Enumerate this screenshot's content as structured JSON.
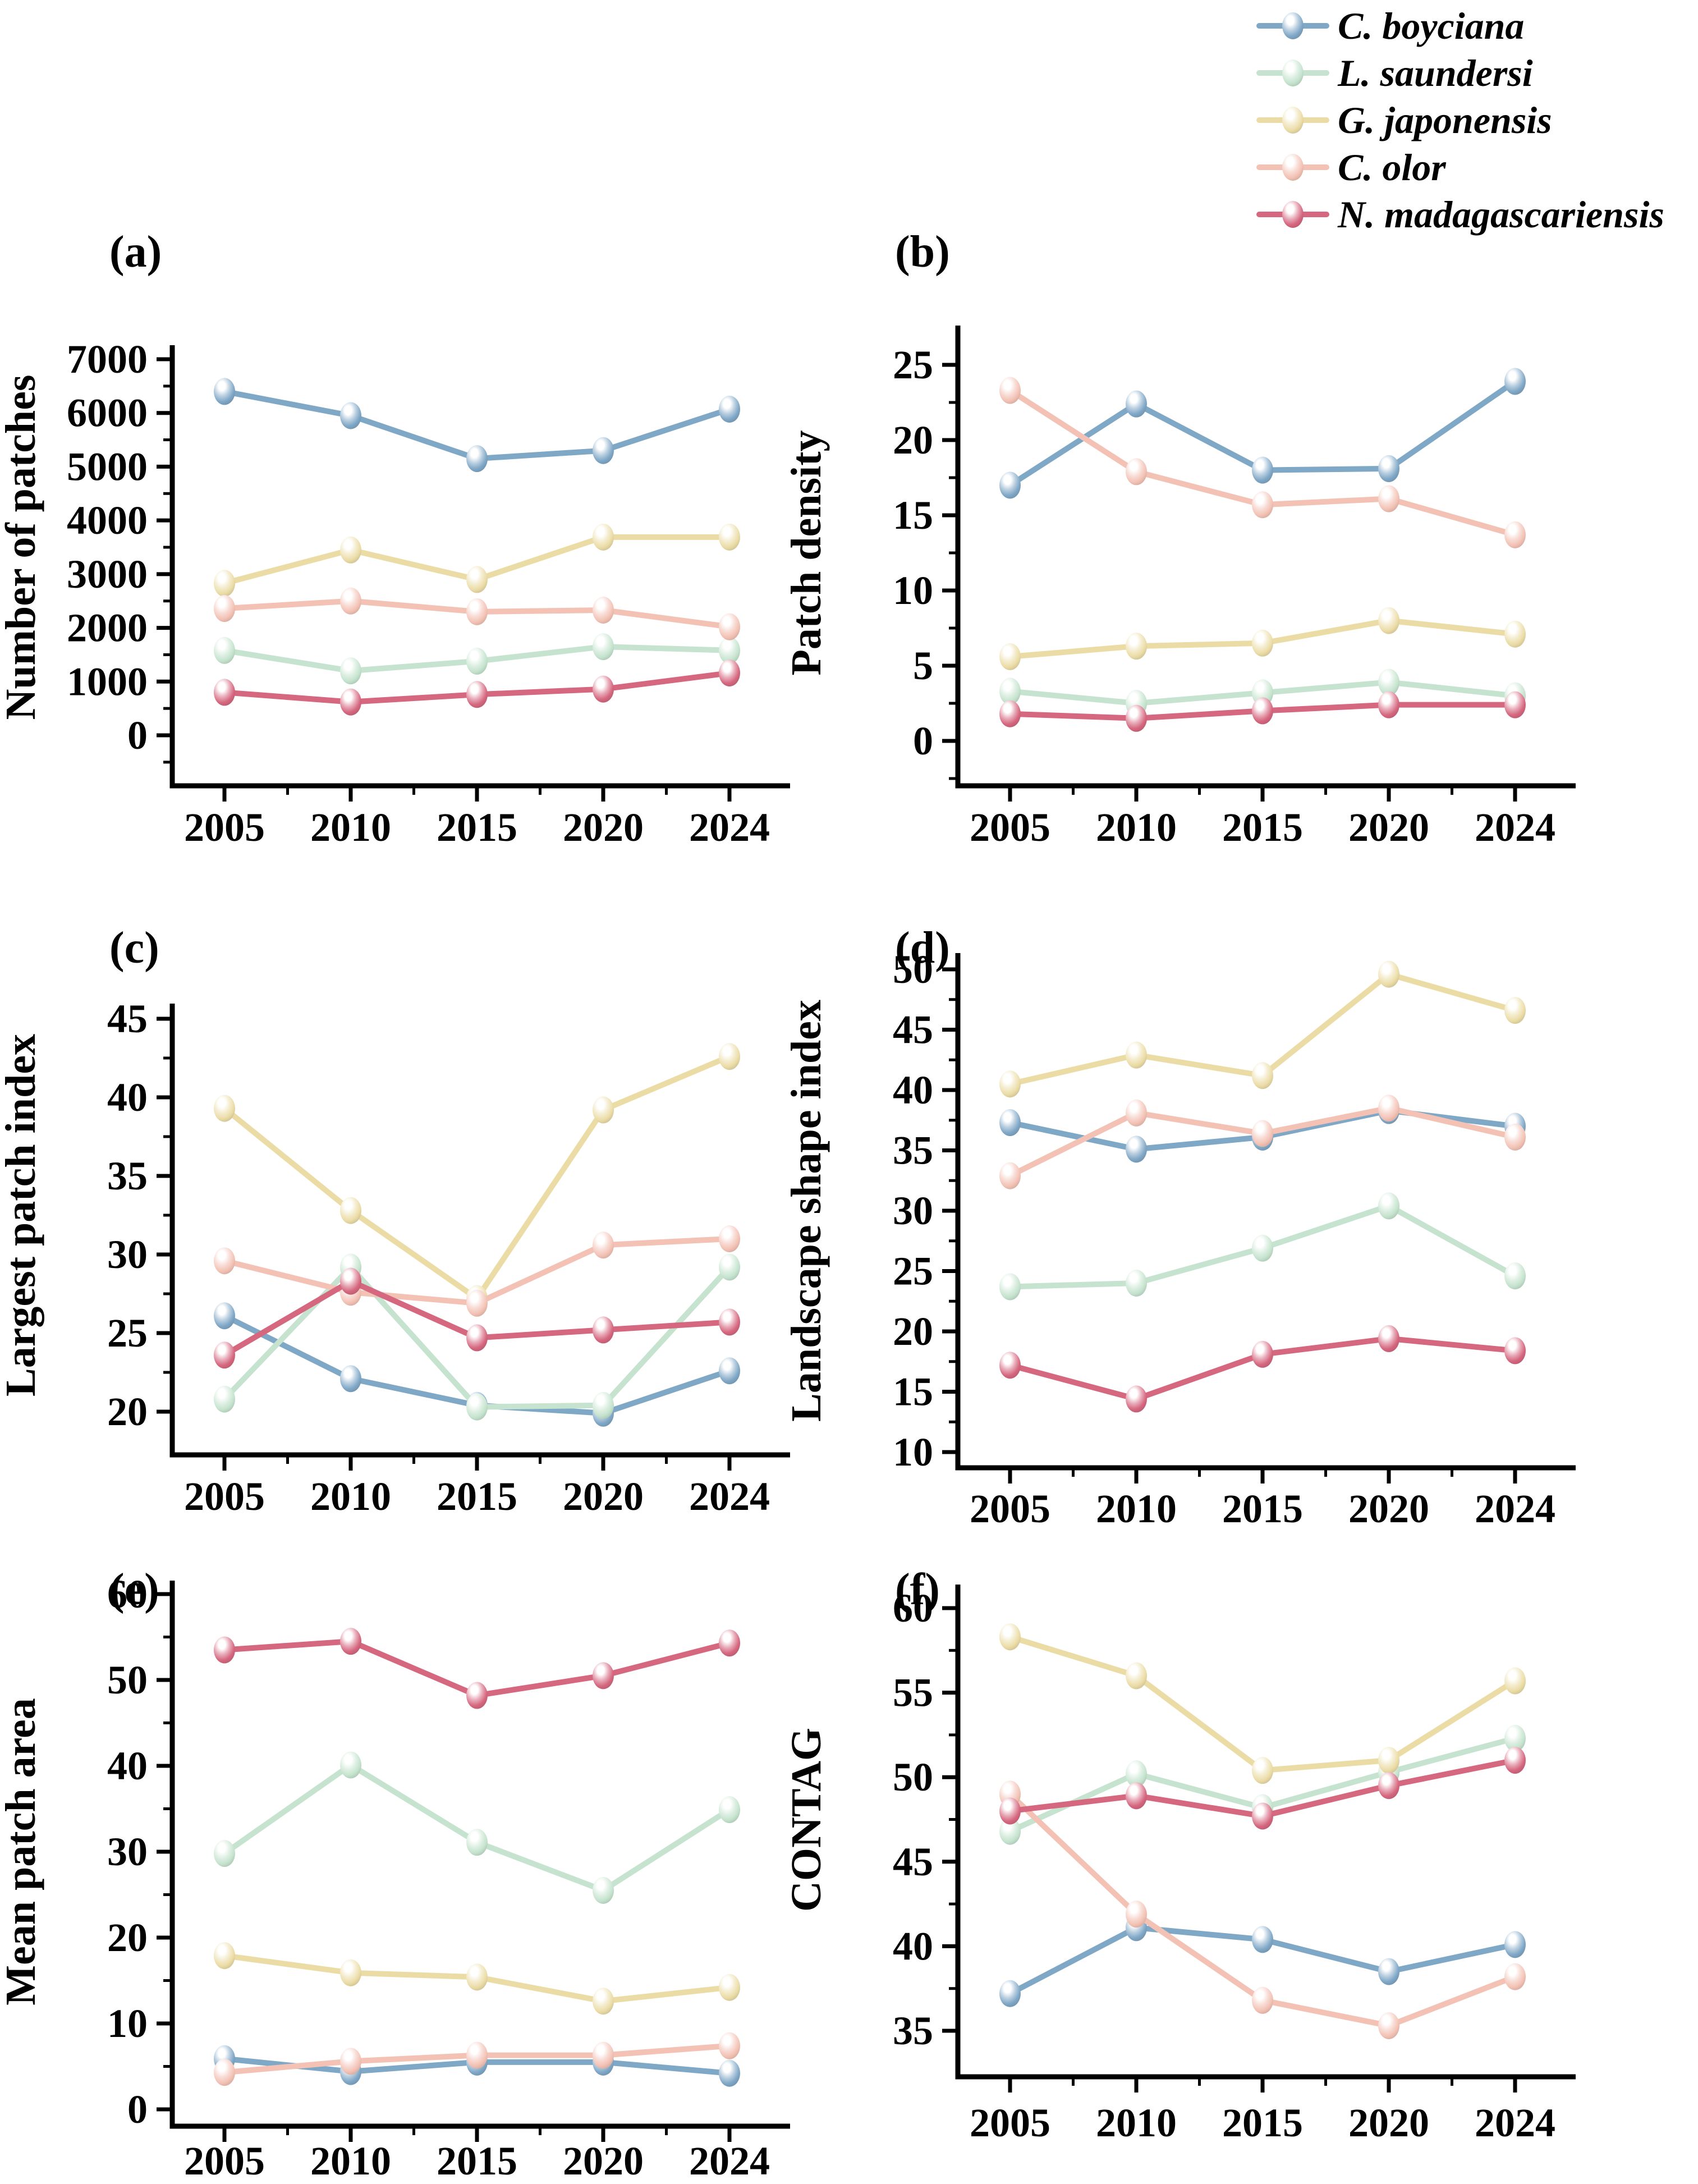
{
  "figure": {
    "background": "#ffffff"
  },
  "colors": {
    "axis": "#000000",
    "series": {
      "C. boyciana": "#7FA7C6",
      "L. saundersi": "#C5E3CE",
      "G. japonensis": "#EBDCA6",
      "C. olor": "#F3C2B5",
      "N. madagascariensis": "#D5677F"
    }
  },
  "legend": {
    "items": [
      {
        "label": "C. boyciana",
        "color": "#7FA7C6"
      },
      {
        "label": "L. saundersi",
        "color": "#C5E3CE"
      },
      {
        "label": "G. japonensis",
        "color": "#EBDCA6"
      },
      {
        "label": "C. olor",
        "color": "#F3C2B5"
      },
      {
        "label": "N. madagascariensis",
        "color": "#D5677F"
      }
    ]
  },
  "chart_data": [
    {
      "panel": "(a)",
      "type": "line",
      "ylabel": "Number of patches",
      "categories": [
        "2005",
        "2010",
        "2015",
        "2020",
        "2024"
      ],
      "yticks": [
        0,
        1000,
        2000,
        3000,
        4000,
        5000,
        6000,
        7000
      ],
      "ylim": [
        -650,
        7000
      ],
      "grid": false,
      "legend_position": "figure-top-right",
      "series": [
        {
          "name": "C. boyciana",
          "values": [
            6400,
            5950,
            5150,
            5300,
            6070
          ]
        },
        {
          "name": "L. saundersi",
          "values": [
            1580,
            1200,
            1380,
            1650,
            1580
          ]
        },
        {
          "name": "G. japonensis",
          "values": [
            2830,
            3450,
            2900,
            3690,
            3690
          ]
        },
        {
          "name": "C. olor",
          "values": [
            2360,
            2500,
            2300,
            2330,
            2020
          ]
        },
        {
          "name": "N. madagascariensis",
          "values": [
            800,
            620,
            760,
            860,
            1160
          ]
        }
      ]
    },
    {
      "panel": "(b)",
      "type": "line",
      "ylabel": "Patch density",
      "categories": [
        "2005",
        "2010",
        "2015",
        "2020",
        "2024"
      ],
      "yticks": [
        0,
        5,
        10,
        15,
        20,
        25
      ],
      "ylim": [
        -3,
        27.5
      ],
      "grid": false,
      "series": [
        {
          "name": "C. boyciana",
          "values": [
            17.0,
            22.4,
            18.0,
            18.1,
            23.9
          ]
        },
        {
          "name": "L. saundersi",
          "values": [
            3.3,
            2.5,
            3.2,
            3.9,
            3.0
          ]
        },
        {
          "name": "G. japonensis",
          "values": [
            5.6,
            6.3,
            6.5,
            8.0,
            7.1
          ]
        },
        {
          "name": "C. olor",
          "values": [
            23.3,
            17.9,
            15.7,
            16.1,
            13.7
          ]
        },
        {
          "name": "N. madagascariensis",
          "values": [
            1.8,
            1.5,
            2.0,
            2.4,
            2.4
          ]
        }
      ]
    },
    {
      "panel": "(c)",
      "type": "line",
      "ylabel": "Largest patch index",
      "categories": [
        "2005",
        "2010",
        "2015",
        "2020",
        "2024"
      ],
      "yticks": [
        20,
        25,
        30,
        35,
        40,
        45
      ],
      "ylim": [
        17.25,
        45.95
      ],
      "grid": false,
      "series": [
        {
          "name": "C. boyciana",
          "values": [
            26.1,
            22.1,
            20.4,
            19.9,
            22.6
          ]
        },
        {
          "name": "L. saundersi",
          "values": [
            20.8,
            29.2,
            20.3,
            20.4,
            29.2
          ]
        },
        {
          "name": "G. japonensis",
          "values": [
            39.3,
            32.8,
            27.2,
            39.2,
            42.6
          ]
        },
        {
          "name": "C. olor",
          "values": [
            29.6,
            27.6,
            26.9,
            30.6,
            31.0
          ]
        },
        {
          "name": "N. madagascariensis",
          "values": [
            23.6,
            28.3,
            24.7,
            25.2,
            25.7
          ]
        }
      ]
    },
    {
      "panel": "(d)",
      "type": "line",
      "ylabel": "Landscape shape index",
      "categories": [
        "2005",
        "2010",
        "2015",
        "2020",
        "2024"
      ],
      "yticks": [
        10,
        15,
        20,
        25,
        30,
        35,
        40,
        45,
        50
      ],
      "ylim": [
        8.7,
        51.35
      ],
      "grid": false,
      "series": [
        {
          "name": "C. boyciana",
          "values": [
            37.3,
            35.1,
            36.1,
            38.3,
            37.0
          ]
        },
        {
          "name": "L. saundersi",
          "values": [
            23.7,
            24.0,
            26.9,
            30.4,
            24.6
          ]
        },
        {
          "name": "G. japonensis",
          "values": [
            40.5,
            42.9,
            41.2,
            49.6,
            46.6
          ]
        },
        {
          "name": "C. olor",
          "values": [
            32.9,
            38.1,
            36.4,
            38.5,
            36.1
          ]
        },
        {
          "name": "N. madagascariensis",
          "values": [
            17.2,
            14.4,
            18.1,
            19.4,
            18.4
          ]
        }
      ]
    },
    {
      "panel": "(e)",
      "type": "line",
      "ylabel": "Mean patch area",
      "categories": [
        "2005",
        "2010",
        "2015",
        "2020",
        "2024"
      ],
      "yticks": [
        0,
        10,
        20,
        30,
        40,
        50,
        60
      ],
      "ylim": [
        -2,
        61.6
      ],
      "grid": false,
      "series": [
        {
          "name": "C. boyciana",
          "values": [
            5.9,
            4.4,
            5.5,
            5.5,
            4.2
          ]
        },
        {
          "name": "L. saundersi",
          "values": [
            29.8,
            40.1,
            31.1,
            25.5,
            34.9
          ]
        },
        {
          "name": "G. japonensis",
          "values": [
            17.9,
            15.9,
            15.4,
            12.6,
            14.2
          ]
        },
        {
          "name": "C. olor",
          "values": [
            4.3,
            5.6,
            6.3,
            6.3,
            7.4
          ]
        },
        {
          "name": "N. madagascariensis",
          "values": [
            53.5,
            54.5,
            48.2,
            50.5,
            54.3
          ]
        }
      ]
    },
    {
      "panel": "(f)",
      "type": "line",
      "ylabel": "CONTAG",
      "categories": [
        "2005",
        "2010",
        "2015",
        "2020",
        "2024"
      ],
      "yticks": [
        35,
        40,
        45,
        50,
        55,
        60
      ],
      "ylim": [
        32.3,
        61.4
      ],
      "grid": false,
      "series": [
        {
          "name": "C. boyciana",
          "values": [
            37.2,
            41.1,
            40.4,
            38.5,
            40.1
          ]
        },
        {
          "name": "L. saundersi",
          "values": [
            46.8,
            50.2,
            48.2,
            50.3,
            52.3
          ]
        },
        {
          "name": "G. japonensis",
          "values": [
            58.3,
            56.0,
            50.4,
            51.0,
            55.7
          ]
        },
        {
          "name": "C. olor",
          "values": [
            49.0,
            41.9,
            36.8,
            35.3,
            38.2
          ]
        },
        {
          "name": "N. madagascariensis",
          "values": [
            48.0,
            48.9,
            47.7,
            49.5,
            51.0
          ]
        }
      ]
    }
  ]
}
